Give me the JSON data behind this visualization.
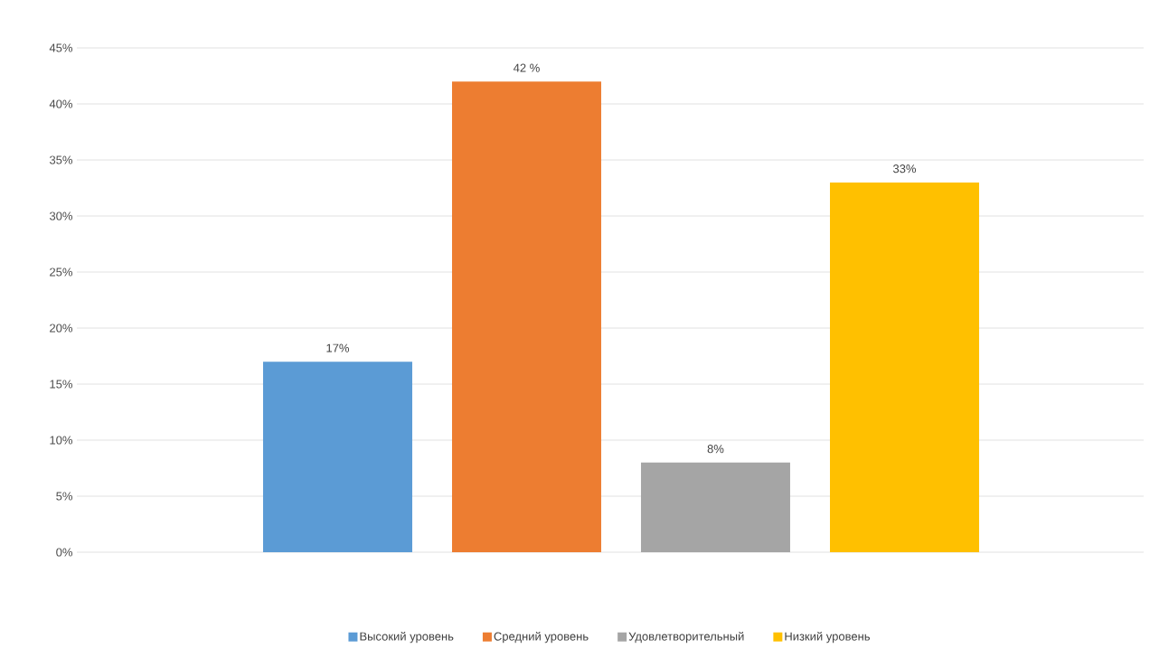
{
  "chart_data": {
    "type": "bar",
    "categories": [
      null
    ],
    "series": [
      {
        "name": "Высокий уровень",
        "color": "#5b9bd5",
        "values": [
          17
        ],
        "value_labels": [
          "17%"
        ]
      },
      {
        "name": "Средний уровень",
        "color": "#ed7d31",
        "values": [
          42
        ],
        "value_labels": [
          "42 %"
        ]
      },
      {
        "name": "Удовлетворительный",
        "color": "#a5a5a5",
        "values": [
          8
        ],
        "value_labels": [
          "8%"
        ]
      },
      {
        "name": "Низкий уровень",
        "color": "#ffc000",
        "values": [
          33
        ],
        "value_labels": [
          "33%"
        ]
      }
    ],
    "ylim": [
      0,
      45
    ],
    "yticks": [
      {
        "value": 0,
        "label": "0%"
      },
      {
        "value": 5,
        "label": "5%"
      },
      {
        "value": 10,
        "label": "10%"
      },
      {
        "value": 15,
        "label": "15%"
      },
      {
        "value": 20,
        "label": "20%"
      },
      {
        "value": 25,
        "label": "25%"
      },
      {
        "value": 30,
        "label": "30%"
      },
      {
        "value": 35,
        "label": "35%"
      },
      {
        "value": 40,
        "label": "40%"
      },
      {
        "value": 45,
        "label": "45%"
      }
    ],
    "grid": "y",
    "legend": "bottom"
  }
}
